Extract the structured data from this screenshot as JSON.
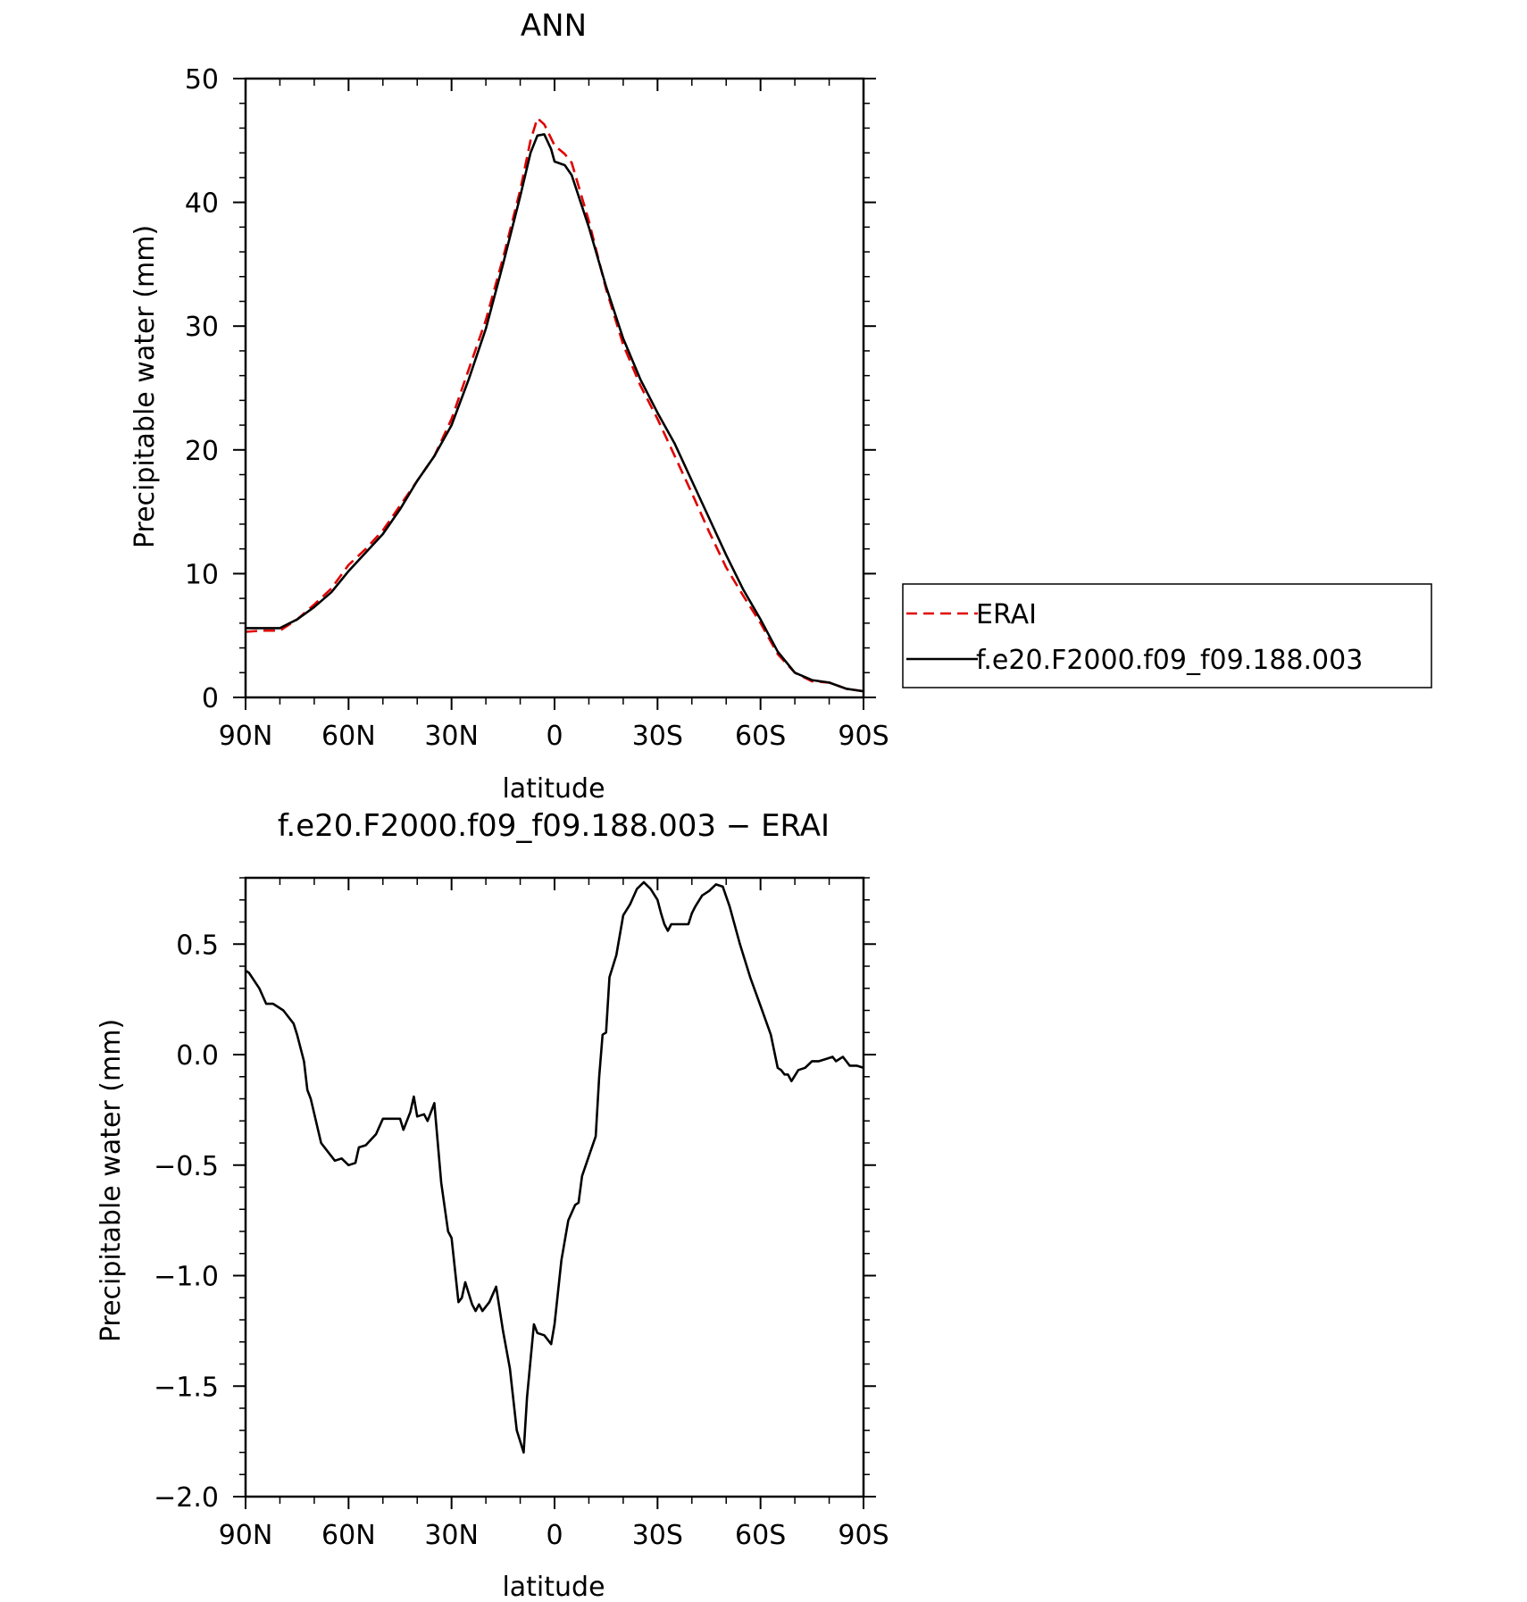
{
  "chart_data": [
    {
      "type": "line",
      "title": "ANN",
      "xlabel": "latitude",
      "ylabel": "Precipitable water (mm)",
      "xlim": [
        90,
        -90
      ],
      "ylim": [
        0,
        50
      ],
      "x_ticks": [
        {
          "value": 90,
          "label": "90N"
        },
        {
          "value": 60,
          "label": "60N"
        },
        {
          "value": 30,
          "label": "30N"
        },
        {
          "value": 0,
          "label": "0"
        },
        {
          "value": -30,
          "label": "30S"
        },
        {
          "value": -60,
          "label": "60S"
        },
        {
          "value": -90,
          "label": "90S"
        }
      ],
      "y_ticks": [
        {
          "value": 0,
          "label": "0"
        },
        {
          "value": 10,
          "label": "10"
        },
        {
          "value": 20,
          "label": "20"
        },
        {
          "value": 30,
          "label": "30"
        },
        {
          "value": 40,
          "label": "40"
        },
        {
          "value": 50,
          "label": "50"
        }
      ],
      "legend_position": "right",
      "series": [
        {
          "name": "ERAI",
          "color": "#e00000",
          "dash": "dashed",
          "points": [
            [
              90,
              5.3
            ],
            [
              85,
              5.4
            ],
            [
              80,
              5.4
            ],
            [
              75,
              6.3
            ],
            [
              70,
              7.5
            ],
            [
              65,
              8.8
            ],
            [
              60,
              10.7
            ],
            [
              55,
              12.0
            ],
            [
              50,
              13.5
            ],
            [
              45,
              15.5
            ],
            [
              40,
              17.5
            ],
            [
              35,
              19.5
            ],
            [
              30,
              22.5
            ],
            [
              25,
              26.5
            ],
            [
              20,
              30.5
            ],
            [
              15,
              35.5
            ],
            [
              10,
              41.0
            ],
            [
              7,
              45.0
            ],
            [
              5,
              46.8
            ],
            [
              3,
              46.3
            ],
            [
              0,
              44.6
            ],
            [
              -3,
              43.9
            ],
            [
              -5,
              43.2
            ],
            [
              -10,
              38.5
            ],
            [
              -15,
              33.0
            ],
            [
              -20,
              28.5
            ],
            [
              -25,
              25.2
            ],
            [
              -30,
              22.5
            ],
            [
              -35,
              19.5
            ],
            [
              -40,
              16.5
            ],
            [
              -45,
              13.4
            ],
            [
              -50,
              10.5
            ],
            [
              -55,
              8.2
            ],
            [
              -60,
              6.0
            ],
            [
              -65,
              3.5
            ],
            [
              -70,
              2.0
            ],
            [
              -75,
              1.3
            ],
            [
              -80,
              1.2
            ],
            [
              -85,
              0.7
            ],
            [
              -90,
              0.5
            ]
          ]
        },
        {
          "name": "f.e20.F2000.f09_f09.188.003",
          "color": "#000000",
          "dash": "solid",
          "points": [
            [
              90,
              5.6
            ],
            [
              85,
              5.6
            ],
            [
              80,
              5.6
            ],
            [
              75,
              6.3
            ],
            [
              70,
              7.3
            ],
            [
              65,
              8.5
            ],
            [
              60,
              10.2
            ],
            [
              55,
              11.7
            ],
            [
              50,
              13.2
            ],
            [
              45,
              15.2
            ],
            [
              40,
              17.5
            ],
            [
              35,
              19.5
            ],
            [
              30,
              22.0
            ],
            [
              25,
              25.7
            ],
            [
              20,
              29.8
            ],
            [
              15,
              35.0
            ],
            [
              10,
              40.5
            ],
            [
              7,
              44.0
            ],
            [
              5,
              45.4
            ],
            [
              3,
              45.5
            ],
            [
              1,
              44.3
            ],
            [
              0,
              43.3
            ],
            [
              -3,
              43.0
            ],
            [
              -5,
              42.2
            ],
            [
              -10,
              38.0
            ],
            [
              -15,
              33.2
            ],
            [
              -20,
              29.0
            ],
            [
              -25,
              25.7
            ],
            [
              -30,
              23.0
            ],
            [
              -35,
              20.5
            ],
            [
              -40,
              17.5
            ],
            [
              -45,
              14.5
            ],
            [
              -50,
              11.5
            ],
            [
              -55,
              8.7
            ],
            [
              -60,
              6.3
            ],
            [
              -65,
              3.7
            ],
            [
              -70,
              2.0
            ],
            [
              -75,
              1.4
            ],
            [
              -80,
              1.2
            ],
            [
              -85,
              0.7
            ],
            [
              -90,
              0.5
            ]
          ]
        }
      ]
    },
    {
      "type": "line",
      "title": "f.e20.F2000.f09_f09.188.003 − ERAI",
      "xlabel": "latitude",
      "ylabel": "Precipitable water (mm)",
      "xlim": [
        90,
        -90
      ],
      "ylim": [
        -2.0,
        0.8
      ],
      "x_ticks": [
        {
          "value": 90,
          "label": "90N"
        },
        {
          "value": 60,
          "label": "60N"
        },
        {
          "value": 30,
          "label": "30N"
        },
        {
          "value": 0,
          "label": "0"
        },
        {
          "value": -30,
          "label": "30S"
        },
        {
          "value": -60,
          "label": "60S"
        },
        {
          "value": -90,
          "label": "90S"
        }
      ],
      "y_ticks": [
        {
          "value": 0.5,
          "label": "0.5"
        },
        {
          "value": 0.0,
          "label": "0.0"
        },
        {
          "value": -0.5,
          "label": "−0.5"
        },
        {
          "value": -1.0,
          "label": "−1.0"
        },
        {
          "value": -1.5,
          "label": "−1.5"
        },
        {
          "value": -2.0,
          "label": "−2.0"
        }
      ],
      "series": [
        {
          "color": "#000000",
          "dash": "solid",
          "points": [
            [
              90,
              0.38
            ],
            [
              89,
              0.37
            ],
            [
              86,
              0.3
            ],
            [
              84,
              0.23
            ],
            [
              82,
              0.23
            ],
            [
              81,
              0.22
            ],
            [
              79,
              0.2
            ],
            [
              76,
              0.14
            ],
            [
              75,
              0.09
            ],
            [
              73,
              -0.03
            ],
            [
              72,
              -0.16
            ],
            [
              71,
              -0.2
            ],
            [
              68,
              -0.4
            ],
            [
              66,
              -0.44
            ],
            [
              64,
              -0.48
            ],
            [
              62,
              -0.47
            ],
            [
              60,
              -0.5
            ],
            [
              58,
              -0.49
            ],
            [
              57,
              -0.42
            ],
            [
              55,
              -0.41
            ],
            [
              52,
              -0.36
            ],
            [
              50,
              -0.29
            ],
            [
              47,
              -0.29
            ],
            [
              45,
              -0.29
            ],
            [
              44,
              -0.34
            ],
            [
              42,
              -0.26
            ],
            [
              41,
              -0.19
            ],
            [
              40,
              -0.28
            ],
            [
              38,
              -0.27
            ],
            [
              37,
              -0.3
            ],
            [
              35,
              -0.22
            ],
            [
              33,
              -0.58
            ],
            [
              31,
              -0.8
            ],
            [
              30,
              -0.83
            ],
            [
              28,
              -1.12
            ],
            [
              27,
              -1.1
            ],
            [
              26,
              -1.03
            ],
            [
              24,
              -1.13
            ],
            [
              23,
              -1.16
            ],
            [
              22,
              -1.13
            ],
            [
              21,
              -1.16
            ],
            [
              19,
              -1.12
            ],
            [
              17,
              -1.05
            ],
            [
              15,
              -1.25
            ],
            [
              13,
              -1.42
            ],
            [
              11,
              -1.7
            ],
            [
              9,
              -1.8
            ],
            [
              8,
              -1.55
            ],
            [
              6,
              -1.22
            ],
            [
              5,
              -1.26
            ],
            [
              3,
              -1.27
            ],
            [
              1,
              -1.31
            ],
            [
              0,
              -1.22
            ],
            [
              -2,
              -0.93
            ],
            [
              -4,
              -0.75
            ],
            [
              -6,
              -0.68
            ],
            [
              -7,
              -0.67
            ],
            [
              -8,
              -0.55
            ],
            [
              -10,
              -0.46
            ],
            [
              -12,
              -0.37
            ],
            [
              -13,
              -0.1
            ],
            [
              -14,
              0.09
            ],
            [
              -15,
              0.1
            ],
            [
              -16,
              0.35
            ],
            [
              -18,
              0.45
            ],
            [
              -20,
              0.63
            ],
            [
              -22,
              0.68
            ],
            [
              -24,
              0.75
            ],
            [
              -26,
              0.78
            ],
            [
              -28,
              0.75
            ],
            [
              -30,
              0.7
            ],
            [
              -31,
              0.64
            ],
            [
              -32,
              0.59
            ],
            [
              -33,
              0.56
            ],
            [
              -34,
              0.59
            ],
            [
              -36,
              0.59
            ],
            [
              -38,
              0.59
            ],
            [
              -39,
              0.59
            ],
            [
              -40,
              0.64
            ],
            [
              -41,
              0.67
            ],
            [
              -43,
              0.72
            ],
            [
              -45,
              0.74
            ],
            [
              -47,
              0.77
            ],
            [
              -49,
              0.76
            ],
            [
              -51,
              0.67
            ],
            [
              -54,
              0.5
            ],
            [
              -57,
              0.35
            ],
            [
              -60,
              0.22
            ],
            [
              -63,
              0.09
            ],
            [
              -65,
              -0.06
            ],
            [
              -66,
              -0.07
            ],
            [
              -67,
              -0.09
            ],
            [
              -68,
              -0.09
            ],
            [
              -69,
              -0.12
            ],
            [
              -71,
              -0.07
            ],
            [
              -73,
              -0.06
            ],
            [
              -75,
              -0.03
            ],
            [
              -77,
              -0.03
            ],
            [
              -79,
              -0.02
            ],
            [
              -81,
              -0.01
            ],
            [
              -82,
              -0.03
            ],
            [
              -84,
              -0.01
            ],
            [
              -86,
              -0.05
            ],
            [
              -88,
              -0.05
            ],
            [
              -90,
              -0.06
            ]
          ]
        }
      ]
    }
  ]
}
